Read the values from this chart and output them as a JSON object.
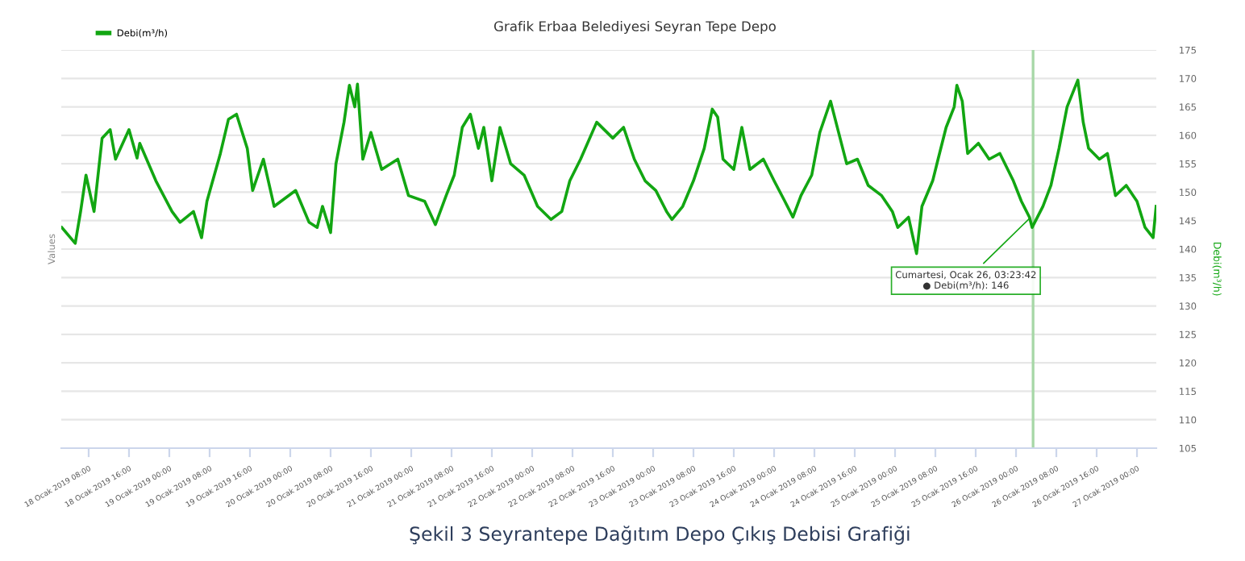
{
  "chart_data": {
    "type": "line",
    "title": "Grafik Erbaa Belediyesi Seyran Tepe Depo",
    "ylabel": "Values",
    "y2label": "Debi(m³/h)",
    "annotations": [
      {
        "text": "Cumartesi, Ocak 26, 03:23:42\n● Debi(m³/h): 146",
        "x": "2019-01-26T03:23",
        "y": 146
      },
      "Şekil 3 Seyrantepe Dağıtım Depo Çıkış Debisi Grafiği"
    ],
    "ref_lines": [
      {
        "axis": "x",
        "value": "2019-01-26T03:23",
        "label": null,
        "color": "#a8d8a8"
      }
    ],
    "xlim": [
      "2019-01-18T02:34",
      "2019-01-27T03:50"
    ],
    "xticks": [
      {
        "value": "2019-01-18T08:00",
        "label": "18 Ocak 2019 08:00"
      },
      {
        "value": "2019-01-18T16:00",
        "label": "18 Ocak 2019 16:00"
      },
      {
        "value": "2019-01-19T00:00",
        "label": "19 Ocak 2019 00:00"
      },
      {
        "value": "2019-01-19T08:00",
        "label": "19 Ocak 2019 08:00"
      },
      {
        "value": "2019-01-19T16:00",
        "label": "19 Ocak 2019 16:00"
      },
      {
        "value": "2019-01-20T00:00",
        "label": "20 Ocak 2019 00:00"
      },
      {
        "value": "2019-01-20T08:00",
        "label": "20 Ocak 2019 08:00"
      },
      {
        "value": "2019-01-20T16:00",
        "label": "20 Ocak 2019 16:00"
      },
      {
        "value": "2019-01-21T00:00",
        "label": "21 Ocak 2019 00:00"
      },
      {
        "value": "2019-01-21T08:00",
        "label": "21 Ocak 2019 08:00"
      },
      {
        "value": "2019-01-21T16:00",
        "label": "21 Ocak 2019 16:00"
      },
      {
        "value": "2019-01-22T00:00",
        "label": "22 Ocak 2019 00:00"
      },
      {
        "value": "2019-01-22T08:00",
        "label": "22 Ocak 2019 08:00"
      },
      {
        "value": "2019-01-22T16:00",
        "label": "22 Ocak 2019 16:00"
      },
      {
        "value": "2019-01-23T00:00",
        "label": "23 Ocak 2019 00:00"
      },
      {
        "value": "2019-01-23T08:00",
        "label": "23 Ocak 2019 08:00"
      },
      {
        "value": "2019-01-23T16:00",
        "label": "23 Ocak 2019 16:00"
      },
      {
        "value": "2019-01-24T00:00",
        "label": "24 Ocak 2019 00:00"
      },
      {
        "value": "2019-01-24T08:00",
        "label": "24 Ocak 2019 08:00"
      },
      {
        "value": "2019-01-24T16:00",
        "label": "24 Ocak 2019 16:00"
      },
      {
        "value": "2019-01-25T00:00",
        "label": "25 Ocak 2019 00:00"
      },
      {
        "value": "2019-01-25T08:00",
        "label": "25 Ocak 2019 08:00"
      },
      {
        "value": "2019-01-25T16:00",
        "label": "25 Ocak 2019 16:00"
      },
      {
        "value": "2019-01-26T00:00",
        "label": "26 Ocak 2019 00:00"
      },
      {
        "value": "2019-01-26T08:00",
        "label": "26 Ocak 2019 08:00"
      },
      {
        "value": "2019-01-26T16:00",
        "label": "26 Ocak 2019 16:00"
      },
      {
        "value": "2019-01-27T00:00",
        "label": "27 Ocak 2019 00:00"
      }
    ],
    "ylim": [
      105,
      175
    ],
    "yticks": [
      105,
      110,
      115,
      120,
      125,
      130,
      135,
      140,
      145,
      150,
      155,
      160,
      165,
      170,
      175
    ],
    "grid": "y",
    "legend": "top left",
    "marker": "none",
    "line_style": "solid",
    "series": [
      {
        "name": "Debi(m³/h)",
        "color": "#12a612",
        "x": [
          "2019-01-18T02:40",
          "2019-01-18T05:20",
          "2019-01-18T06:24",
          "2019-01-18T07:28",
          "2019-01-18T09:04",
          "2019-01-18T10:40",
          "2019-01-18T12:16",
          "2019-01-18T13:20",
          "2019-01-18T16:00",
          "2019-01-18T17:36",
          "2019-01-18T18:08",
          "2019-01-18T21:20",
          "2019-01-19T00:32",
          "2019-01-19T02:08",
          "2019-01-19T04:48",
          "2019-01-19T06:24",
          "2019-01-19T07:28",
          "2019-01-19T10:08",
          "2019-01-19T11:44",
          "2019-01-19T13:20",
          "2019-01-19T15:28",
          "2019-01-19T16:32",
          "2019-01-19T18:40",
          "2019-01-19T20:48",
          "2019-01-20T01:04",
          "2019-01-20T03:44",
          "2019-01-20T05:20",
          "2019-01-20T06:24",
          "2019-01-20T08:00",
          "2019-01-20T09:04",
          "2019-01-20T10:40",
          "2019-01-20T11:44",
          "2019-01-20T12:48",
          "2019-01-20T13:20",
          "2019-01-20T14:24",
          "2019-01-20T16:00",
          "2019-01-20T18:08",
          "2019-01-20T21:20",
          "2019-01-20T23:28",
          "2019-01-21T02:40",
          "2019-01-21T04:48",
          "2019-01-21T06:56",
          "2019-01-21T08:32",
          "2019-01-21T10:08",
          "2019-01-21T11:44",
          "2019-01-21T13:20",
          "2019-01-21T14:24",
          "2019-01-21T16:00",
          "2019-01-21T17:36",
          "2019-01-21T19:44",
          "2019-01-21T22:24",
          "2019-01-22T01:04",
          "2019-01-22T03:44",
          "2019-01-22T05:52",
          "2019-01-22T07:28",
          "2019-01-22T09:36",
          "2019-01-22T12:48",
          "2019-01-22T16:00",
          "2019-01-22T18:08",
          "2019-01-22T20:16",
          "2019-01-22T22:24",
          "2019-01-23T00:32",
          "2019-01-23T02:40",
          "2019-01-23T03:44",
          "2019-01-23T05:52",
          "2019-01-23T08:00",
          "2019-01-23T10:08",
          "2019-01-23T11:44",
          "2019-01-23T12:48",
          "2019-01-23T13:52",
          "2019-01-23T16:00",
          "2019-01-23T17:36",
          "2019-01-23T19:12",
          "2019-01-23T21:52",
          "2019-01-24T00:00",
          "2019-01-24T02:08",
          "2019-01-24T03:44",
          "2019-01-24T05:20",
          "2019-01-24T07:28",
          "2019-01-24T09:04",
          "2019-01-24T11:12",
          "2019-01-24T12:48",
          "2019-01-24T14:24",
          "2019-01-24T16:32",
          "2019-01-24T18:40",
          "2019-01-24T21:20",
          "2019-01-24T23:28",
          "2019-01-25T00:32",
          "2019-01-25T02:40",
          "2019-01-25T04:16",
          "2019-01-25T05:20",
          "2019-01-25T07:28",
          "2019-01-25T08:32",
          "2019-01-25T10:08",
          "2019-01-25T11:44",
          "2019-01-25T12:16",
          "2019-01-25T13:20",
          "2019-01-25T14:24",
          "2019-01-25T16:32",
          "2019-01-25T18:40",
          "2019-01-25T20:48",
          "2019-01-25T23:28",
          "2019-01-26T01:04",
          "2019-01-26T02:40",
          "2019-01-26T03:12",
          "2019-01-26T05:20",
          "2019-01-26T06:56",
          "2019-01-26T08:32",
          "2019-01-26T10:08",
          "2019-01-26T12:16",
          "2019-01-26T13:20",
          "2019-01-26T14:24",
          "2019-01-26T16:32",
          "2019-01-26T18:08",
          "2019-01-26T19:44",
          "2019-01-26T21:52",
          "2019-01-27T00:00",
          "2019-01-27T01:36",
          "2019-01-27T03:12",
          "2019-01-27T03:48"
        ],
        "values": [
          143.8,
          141,
          146.6,
          153,
          146.6,
          159.5,
          161,
          155.8,
          161,
          156,
          158.6,
          152,
          146.6,
          144.7,
          146.6,
          142,
          148.4,
          156.8,
          162.8,
          163.7,
          157.7,
          150.3,
          155.8,
          147.5,
          150.3,
          144.7,
          143.8,
          147.5,
          142.9,
          155,
          162.3,
          168.8,
          165,
          169,
          155.8,
          160.5,
          154,
          155.8,
          149.4,
          148.4,
          144.3,
          149.4,
          153,
          161.4,
          163.7,
          157.7,
          161.4,
          152,
          161.4,
          155,
          153,
          147.5,
          145.2,
          146.6,
          152,
          155.8,
          162.3,
          159.5,
          161.4,
          155.8,
          152,
          150.3,
          146.6,
          145.2,
          147.5,
          152,
          157.7,
          164.6,
          163.2,
          155.8,
          154,
          161.4,
          154,
          155.8,
          152,
          148.4,
          145.6,
          149.4,
          153,
          160.5,
          166,
          160.5,
          155,
          155.8,
          151.2,
          149.4,
          146.6,
          143.8,
          145.6,
          139.2,
          147.5,
          152,
          155.8,
          161.4,
          165,
          168.8,
          166,
          156.8,
          158.6,
          155.8,
          156.8,
          152,
          148.4,
          145.6,
          143.8,
          147.5,
          151.2,
          157.7,
          165,
          169.7,
          162.3,
          157.7,
          155.8,
          156.8,
          149.4,
          151.2,
          148.4,
          143.8,
          142,
          147.5
        ]
      }
    ]
  }
}
